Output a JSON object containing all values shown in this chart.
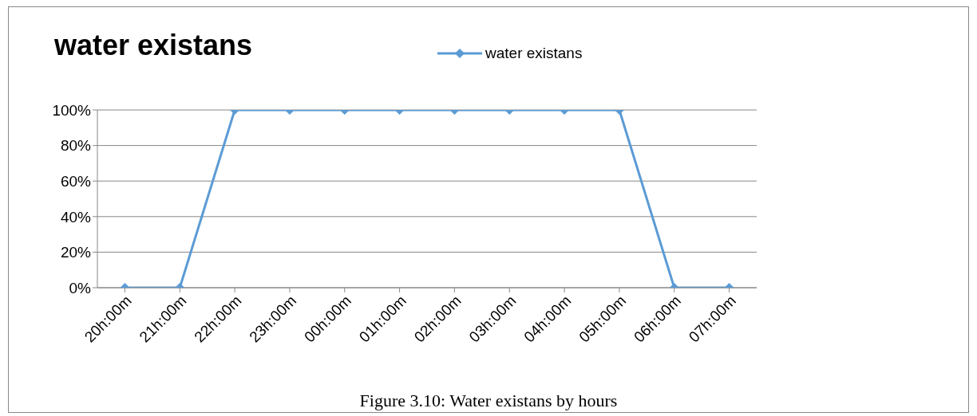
{
  "chart_data": {
    "type": "line",
    "title": "water existans",
    "categories": [
      "20h:00m",
      "21h:00m",
      "22h:00m",
      "23h:00m",
      "00h:00m",
      "01h:00m",
      "02h:00m",
      "03h:00m",
      "04h:00m",
      "05h:00m",
      "06h:00m",
      "07h:00m"
    ],
    "series": [
      {
        "name": "water existans",
        "color": "#5b9bd5",
        "values": [
          0,
          0,
          100,
          100,
          100,
          100,
          100,
          100,
          100,
          100,
          0,
          0
        ]
      }
    ],
    "ylim": [
      0,
      100
    ],
    "yticks": [
      {
        "value": 0,
        "label": "0%"
      },
      {
        "value": 20,
        "label": "20%"
      },
      {
        "value": 40,
        "label": "40%"
      },
      {
        "value": 60,
        "label": "60%"
      },
      {
        "value": 80,
        "label": "80%"
      },
      {
        "value": 100,
        "label": "100%"
      }
    ],
    "grid": "y",
    "legend": "top",
    "marker": "diamond",
    "line_style": "solid",
    "annotations": [
      "Figure 3.10: Water existans by hours"
    ]
  }
}
